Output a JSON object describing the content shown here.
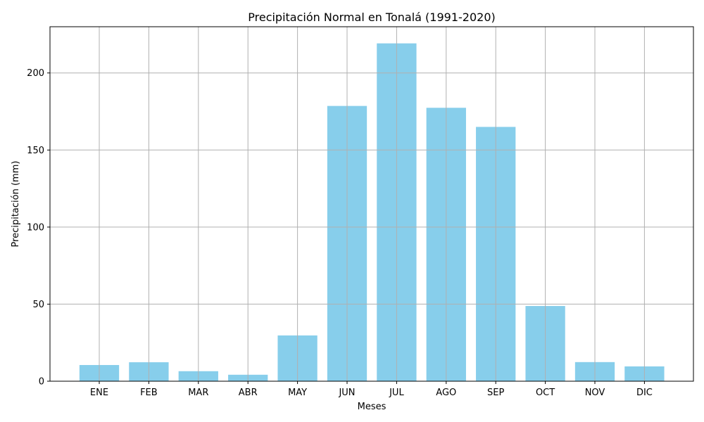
{
  "chart_data": {
    "type": "bar",
    "title": "Precipitación Normal en Tonalá (1991-2020)",
    "xlabel": "Meses",
    "ylabel": "Precipitación (mm)",
    "categories": [
      "ENE",
      "FEB",
      "MAR",
      "ABR",
      "MAY",
      "JUN",
      "JUL",
      "AGO",
      "SEP",
      "OCT",
      "NOV",
      "DIC"
    ],
    "values": [
      10.5,
      12.3,
      6.5,
      4.2,
      29.7,
      178.6,
      219.2,
      177.4,
      165.0,
      48.8,
      12.4,
      9.6
    ],
    "ylim": [
      0,
      230
    ],
    "yticks": [
      0,
      50,
      100,
      150,
      200
    ],
    "grid": true,
    "colors": {
      "bar": "#87ceeb",
      "grid": "#b0b0b0",
      "axis": "#000000"
    }
  }
}
